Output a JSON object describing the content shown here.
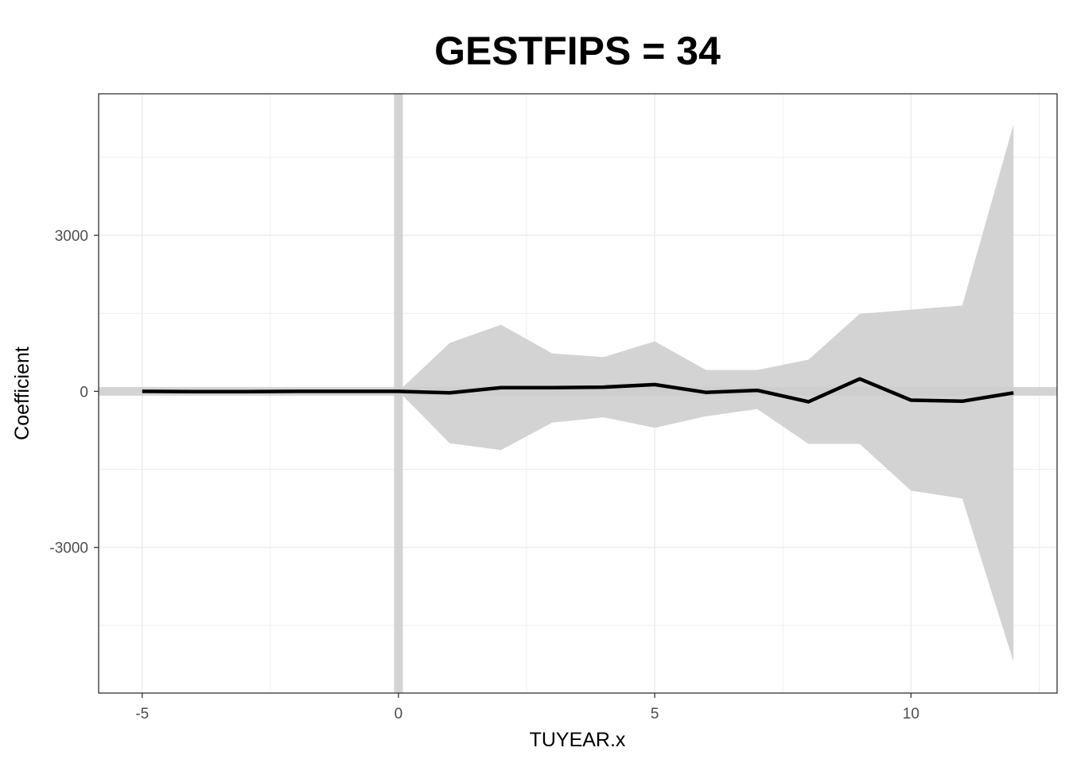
{
  "chart_data": {
    "type": "line",
    "title": "GESTFIPS = 34",
    "xlabel": "TUYEAR.x",
    "ylabel": "Coefficient",
    "x": [
      -5,
      -4,
      -3,
      -2,
      -1,
      0,
      1,
      2,
      3,
      4,
      5,
      6,
      7,
      8,
      9,
      10,
      11,
      12
    ],
    "series": [
      {
        "values": [
          0,
          -5,
          -5,
          0,
          0,
          0,
          -30,
          70,
          70,
          80,
          130,
          -20,
          20,
          -200,
          240,
          -170,
          -190,
          -30
        ],
        "lower": [
          0,
          -5,
          -5,
          0,
          0,
          0,
          -1000,
          -1130,
          -600,
          -500,
          -700,
          -480,
          -340,
          -1010,
          -1010,
          -1910,
          -2060,
          -5200
        ],
        "upper": [
          0,
          -5,
          -5,
          0,
          0,
          0,
          930,
          1280,
          730,
          660,
          960,
          410,
          410,
          610,
          1490,
          1570,
          1650,
          5130
        ]
      }
    ],
    "reference_lines": {
      "x": 0,
      "y": 0
    },
    "xlim": [
      -5.85,
      12.85
    ],
    "ylim": [
      -5800,
      5720
    ],
    "xticks": [
      "-5",
      "0",
      "5",
      "10"
    ],
    "yticks": [
      "-3000",
      "0",
      "3000"
    ],
    "grid": true,
    "legend": "none",
    "colors": {
      "line": "#000000",
      "band": "#d3d3d3",
      "reference": "#cccccc",
      "grid": "#ebebeb",
      "panel_border": "#333333"
    }
  }
}
